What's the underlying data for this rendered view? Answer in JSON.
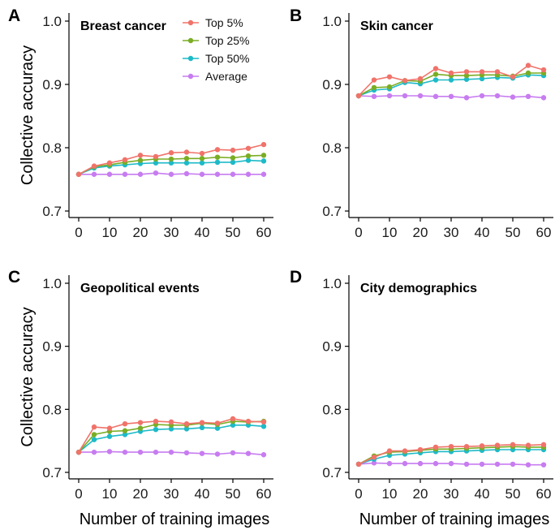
{
  "chart_data": [
    {
      "panel": "A",
      "type": "line",
      "title": "Breast cancer",
      "ylabel": "Collective accuracy",
      "xlabel": "",
      "xlim": [
        0,
        60
      ],
      "ylim": [
        0.7,
        1.0
      ],
      "xticks": [
        0,
        10,
        20,
        30,
        40,
        50,
        60
      ],
      "yticks": [
        0.7,
        0.8,
        0.9,
        1.0
      ],
      "x": [
        0,
        5,
        10,
        15,
        20,
        25,
        30,
        35,
        40,
        45,
        50,
        55,
        60
      ],
      "legend": {
        "show": true,
        "position": "top-right"
      },
      "series": [
        {
          "name": "Top 5%",
          "color": "#f0736a",
          "values": [
            0.758,
            0.771,
            0.776,
            0.781,
            0.788,
            0.786,
            0.792,
            0.793,
            0.791,
            0.797,
            0.796,
            0.799,
            0.805
          ]
        },
        {
          "name": "Top 25%",
          "color": "#7aad25",
          "values": [
            0.758,
            0.77,
            0.773,
            0.777,
            0.78,
            0.782,
            0.782,
            0.783,
            0.783,
            0.785,
            0.784,
            0.787,
            0.788
          ]
        },
        {
          "name": "Top 50%",
          "color": "#1dbac8",
          "values": [
            0.758,
            0.768,
            0.771,
            0.773,
            0.775,
            0.776,
            0.776,
            0.776,
            0.776,
            0.777,
            0.777,
            0.78,
            0.779
          ]
        },
        {
          "name": "Average",
          "color": "#c77cf0",
          "values": [
            0.758,
            0.758,
            0.758,
            0.758,
            0.758,
            0.76,
            0.758,
            0.759,
            0.758,
            0.758,
            0.758,
            0.758,
            0.758
          ]
        }
      ]
    },
    {
      "panel": "B",
      "type": "line",
      "title": "Skin cancer",
      "ylabel": "",
      "xlabel": "",
      "xlim": [
        0,
        60
      ],
      "ylim": [
        0.7,
        1.0
      ],
      "xticks": [
        0,
        10,
        20,
        30,
        40,
        50,
        60
      ],
      "yticks": [
        0.7,
        0.8,
        0.9,
        1.0
      ],
      "x": [
        0,
        5,
        10,
        15,
        20,
        25,
        30,
        35,
        40,
        45,
        50,
        55,
        60
      ],
      "series": [
        {
          "name": "Top 5%",
          "color": "#f0736a",
          "values": [
            0.882,
            0.907,
            0.912,
            0.906,
            0.909,
            0.925,
            0.918,
            0.92,
            0.92,
            0.92,
            0.912,
            0.93,
            0.923
          ]
        },
        {
          "name": "Top 25%",
          "color": "#7aad25",
          "values": [
            0.882,
            0.895,
            0.896,
            0.906,
            0.905,
            0.916,
            0.914,
            0.914,
            0.915,
            0.915,
            0.913,
            0.918,
            0.918
          ]
        },
        {
          "name": "Top 50%",
          "color": "#1dbac8",
          "values": [
            0.882,
            0.891,
            0.893,
            0.903,
            0.901,
            0.907,
            0.907,
            0.908,
            0.909,
            0.911,
            0.91,
            0.915,
            0.914
          ]
        },
        {
          "name": "Average",
          "color": "#c77cf0",
          "values": [
            0.882,
            0.881,
            0.882,
            0.882,
            0.882,
            0.881,
            0.881,
            0.879,
            0.882,
            0.882,
            0.88,
            0.881,
            0.879
          ]
        }
      ]
    },
    {
      "panel": "C",
      "type": "line",
      "title": "Geopolitical events",
      "ylabel": "Collective accuracy",
      "xlabel": "Number of training images",
      "xlim": [
        0,
        60
      ],
      "ylim": [
        0.7,
        1.0
      ],
      "xticks": [
        0,
        10,
        20,
        30,
        40,
        50,
        60
      ],
      "yticks": [
        0.7,
        0.8,
        0.9,
        1.0
      ],
      "x": [
        0,
        5,
        10,
        15,
        20,
        25,
        30,
        35,
        40,
        45,
        50,
        55,
        60
      ],
      "series": [
        {
          "name": "Top 5%",
          "color": "#f0736a",
          "values": [
            0.732,
            0.772,
            0.77,
            0.777,
            0.779,
            0.781,
            0.78,
            0.777,
            0.779,
            0.778,
            0.785,
            0.781,
            0.78
          ]
        },
        {
          "name": "Top 25%",
          "color": "#7aad25",
          "values": [
            0.732,
            0.76,
            0.765,
            0.766,
            0.77,
            0.776,
            0.775,
            0.775,
            0.778,
            0.776,
            0.781,
            0.78,
            0.781
          ]
        },
        {
          "name": "Top 50%",
          "color": "#1dbac8",
          "values": [
            0.732,
            0.752,
            0.757,
            0.76,
            0.765,
            0.768,
            0.769,
            0.769,
            0.771,
            0.77,
            0.775,
            0.775,
            0.773
          ]
        },
        {
          "name": "Average",
          "color": "#c77cf0",
          "values": [
            0.732,
            0.732,
            0.733,
            0.732,
            0.732,
            0.732,
            0.732,
            0.731,
            0.73,
            0.729,
            0.731,
            0.73,
            0.728
          ]
        }
      ]
    },
    {
      "panel": "D",
      "type": "line",
      "title": "City demographics",
      "ylabel": "",
      "xlabel": "Number of training images",
      "xlim": [
        0,
        60
      ],
      "ylim": [
        0.7,
        1.0
      ],
      "xticks": [
        0,
        10,
        20,
        30,
        40,
        50,
        60
      ],
      "yticks": [
        0.7,
        0.8,
        0.9,
        1.0
      ],
      "x": [
        0,
        5,
        10,
        15,
        20,
        25,
        30,
        35,
        40,
        45,
        50,
        55,
        60
      ],
      "series": [
        {
          "name": "Top 5%",
          "color": "#f0736a",
          "values": [
            0.713,
            0.724,
            0.734,
            0.734,
            0.736,
            0.74,
            0.741,
            0.741,
            0.742,
            0.743,
            0.744,
            0.743,
            0.744
          ]
        },
        {
          "name": "Top 25%",
          "color": "#7aad25",
          "values": [
            0.713,
            0.726,
            0.732,
            0.733,
            0.735,
            0.737,
            0.737,
            0.738,
            0.739,
            0.74,
            0.741,
            0.74,
            0.74
          ]
        },
        {
          "name": "Top 50%",
          "color": "#1dbac8",
          "values": [
            0.713,
            0.721,
            0.727,
            0.729,
            0.731,
            0.733,
            0.733,
            0.734,
            0.735,
            0.736,
            0.736,
            0.736,
            0.736
          ]
        },
        {
          "name": "Average",
          "color": "#c77cf0",
          "values": [
            0.713,
            0.715,
            0.714,
            0.714,
            0.714,
            0.714,
            0.714,
            0.713,
            0.713,
            0.713,
            0.713,
            0.712,
            0.712
          ]
        }
      ]
    }
  ]
}
